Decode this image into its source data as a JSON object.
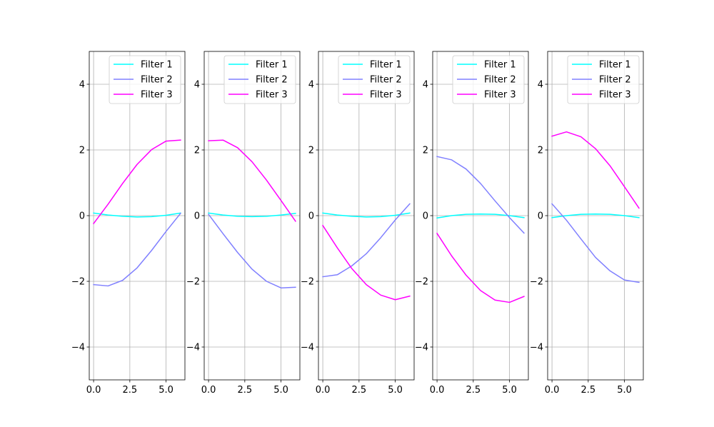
{
  "chart_data": [
    {
      "type": "line",
      "x": [
        0,
        1,
        2,
        3,
        4,
        5,
        6
      ],
      "xlim": [
        -0.3,
        6.3
      ],
      "ylim": [
        -5,
        5
      ],
      "xticks": [
        0.0,
        2.5,
        5.0
      ],
      "xtick_labels": [
        "0.0",
        "2.5",
        "5.0"
      ],
      "yticks": [
        -4,
        -2,
        0,
        2,
        4
      ],
      "ytick_labels": [
        "−4",
        "−2",
        "0",
        "2",
        "4"
      ],
      "grid": true,
      "legend_position": "top-right",
      "series": [
        {
          "name": "Filter 1",
          "color": "#00ffff",
          "values": [
            0.08,
            0.02,
            -0.02,
            -0.04,
            -0.03,
            0.01,
            0.08
          ]
        },
        {
          "name": "Filter 2",
          "color": "#8080ff",
          "values": [
            -2.1,
            -2.14,
            -1.97,
            -1.59,
            -1.06,
            -0.48,
            0.07
          ]
        },
        {
          "name": "Filter 3",
          "color": "#ff00ff",
          "values": [
            -0.24,
            0.35,
            0.98,
            1.56,
            2.01,
            2.27,
            2.3
          ]
        }
      ]
    },
    {
      "type": "line",
      "x": [
        0,
        1,
        2,
        3,
        4,
        5,
        6
      ],
      "xlim": [
        -0.3,
        6.3
      ],
      "ylim": [
        -5,
        5
      ],
      "xticks": [
        0.0,
        2.5,
        5.0
      ],
      "xtick_labels": [
        "0.0",
        "2.5",
        "5.0"
      ],
      "yticks": [
        -4,
        -2,
        0,
        2,
        4
      ],
      "ytick_labels": [
        "−4",
        "−2",
        "0",
        "2",
        "4"
      ],
      "grid": true,
      "legend_position": "top-right",
      "series": [
        {
          "name": "Filter 1",
          "color": "#00ffff",
          "values": [
            0.08,
            0.02,
            -0.02,
            -0.03,
            -0.02,
            0.02,
            0.07
          ]
        },
        {
          "name": "Filter 2",
          "color": "#8080ff",
          "values": [
            0.04,
            -0.55,
            -1.12,
            -1.63,
            -2.0,
            -2.2,
            -2.18
          ]
        },
        {
          "name": "Filter 3",
          "color": "#ff00ff",
          "values": [
            2.28,
            2.3,
            2.07,
            1.64,
            1.08,
            0.46,
            -0.17
          ]
        }
      ]
    },
    {
      "type": "line",
      "x": [
        0,
        1,
        2,
        3,
        4,
        5,
        6
      ],
      "xlim": [
        -0.3,
        6.3
      ],
      "ylim": [
        -5,
        5
      ],
      "xticks": [
        0.0,
        2.5,
        5.0
      ],
      "xtick_labels": [
        "0.0",
        "2.5",
        "5.0"
      ],
      "yticks": [
        -4,
        -2,
        0,
        2,
        4
      ],
      "ytick_labels": [
        "−4",
        "−2",
        "0",
        "2",
        "4"
      ],
      "grid": true,
      "legend_position": "top-right",
      "series": [
        {
          "name": "Filter 1",
          "color": "#00ffff",
          "values": [
            0.08,
            0.02,
            -0.02,
            -0.04,
            -0.03,
            0.01,
            0.08
          ]
        },
        {
          "name": "Filter 2",
          "color": "#8080ff",
          "values": [
            -1.86,
            -1.8,
            -1.53,
            -1.16,
            -0.67,
            -0.13,
            0.36
          ]
        },
        {
          "name": "Filter 3",
          "color": "#ff00ff",
          "values": [
            -0.3,
            -0.98,
            -1.61,
            -2.1,
            -2.42,
            -2.56,
            -2.45
          ]
        }
      ]
    },
    {
      "type": "line",
      "x": [
        0,
        1,
        2,
        3,
        4,
        5,
        6
      ],
      "xlim": [
        -0.3,
        6.3
      ],
      "ylim": [
        -5,
        5
      ],
      "xticks": [
        0.0,
        2.5,
        5.0
      ],
      "xtick_labels": [
        "0.0",
        "2.5",
        "5.0"
      ],
      "yticks": [
        -4,
        -2,
        0,
        2,
        4
      ],
      "ytick_labels": [
        "−4",
        "−2",
        "0",
        "2",
        "4"
      ],
      "grid": true,
      "legend_position": "top-right",
      "series": [
        {
          "name": "Filter 1",
          "color": "#00ffff",
          "values": [
            -0.07,
            0.0,
            0.04,
            0.05,
            0.04,
            0.0,
            -0.06
          ]
        },
        {
          "name": "Filter 2",
          "color": "#8080ff",
          "values": [
            1.8,
            1.7,
            1.42,
            0.98,
            0.45,
            -0.06,
            -0.53
          ]
        },
        {
          "name": "Filter 3",
          "color": "#ff00ff",
          "values": [
            -0.54,
            -1.22,
            -1.81,
            -2.28,
            -2.57,
            -2.64,
            -2.46
          ]
        }
      ]
    },
    {
      "type": "line",
      "x": [
        0,
        1,
        2,
        3,
        4,
        5,
        6
      ],
      "xlim": [
        -0.3,
        6.3
      ],
      "ylim": [
        -5,
        5
      ],
      "xticks": [
        0.0,
        2.5,
        5.0
      ],
      "xtick_labels": [
        "0.0",
        "2.5",
        "5.0"
      ],
      "yticks": [
        -4,
        -2,
        0,
        2,
        4
      ],
      "ytick_labels": [
        "−4",
        "−2",
        "0",
        "2",
        "4"
      ],
      "grid": true,
      "legend_position": "top-right",
      "series": [
        {
          "name": "Filter 1",
          "color": "#00ffff",
          "values": [
            -0.06,
            0.0,
            0.04,
            0.05,
            0.04,
            0.0,
            -0.06
          ]
        },
        {
          "name": "Filter 2",
          "color": "#8080ff",
          "values": [
            0.36,
            -0.14,
            -0.71,
            -1.27,
            -1.68,
            -1.96,
            -2.03
          ]
        },
        {
          "name": "Filter 3",
          "color": "#ff00ff",
          "values": [
            2.42,
            2.55,
            2.4,
            2.04,
            1.52,
            0.88,
            0.23
          ]
        }
      ]
    }
  ]
}
